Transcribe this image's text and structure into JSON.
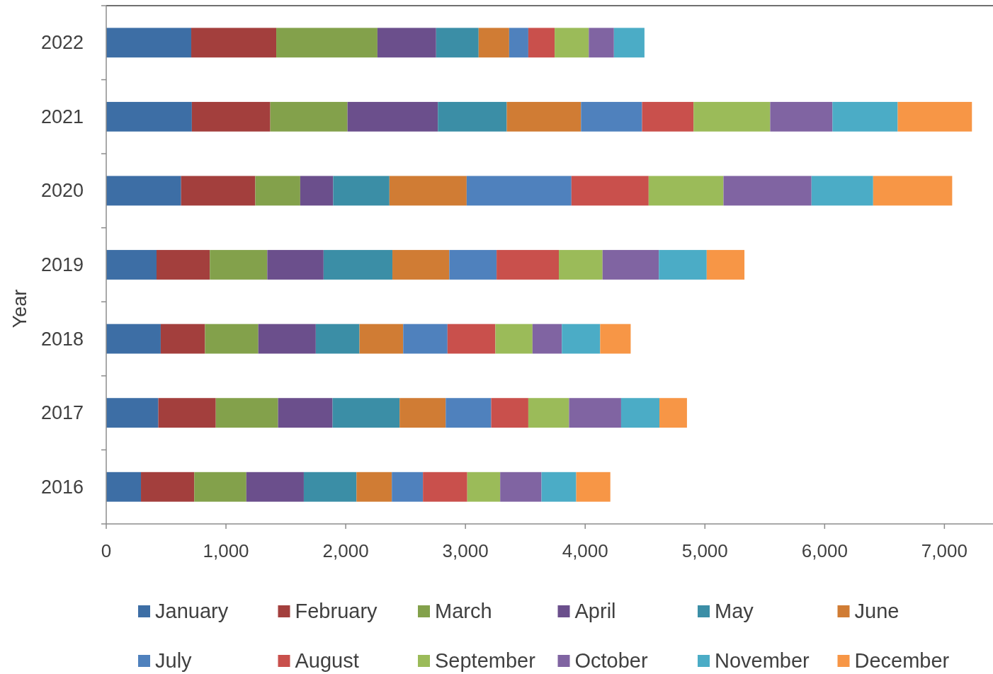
{
  "chart_data": {
    "type": "bar",
    "orientation": "horizontal",
    "stacked": true,
    "ylabel": "Year",
    "legend": "bottom",
    "categories": [
      "2022",
      "2021",
      "2020",
      "2019",
      "2018",
      "2017",
      "2016"
    ],
    "xlim": [
      0,
      7400
    ],
    "xticks": [
      0,
      {
        "value": 1000,
        "label": "1,000"
      },
      {
        "value": 2000,
        "label": "2,000"
      },
      {
        "value": 3000,
        "label": "3,000"
      },
      {
        "value": 4000,
        "label": "4,000"
      },
      {
        "value": 5000,
        "label": "5,000"
      },
      {
        "value": 6000,
        "label": "6,000"
      },
      {
        "value": 7000,
        "label": "7,000"
      }
    ],
    "series": [
      {
        "name": "January",
        "color": "#3d6ea5",
        "values": [
          710,
          715,
          625,
          420,
          455,
          435,
          290
        ]
      },
      {
        "name": "February",
        "color": "#a33f3d",
        "values": [
          710,
          655,
          620,
          445,
          370,
          480,
          445
        ]
      },
      {
        "name": "March",
        "color": "#83a14b",
        "values": [
          845,
          645,
          375,
          480,
          445,
          520,
          435
        ]
      },
      {
        "name": "April",
        "color": "#6b4f8c",
        "values": [
          490,
          755,
          275,
          470,
          480,
          455,
          480
        ]
      },
      {
        "name": "May",
        "color": "#3b8ea6",
        "values": [
          355,
          575,
          470,
          575,
          365,
          560,
          440
        ]
      },
      {
        "name": "June",
        "color": "#d07c34",
        "values": [
          255,
          620,
          645,
          475,
          365,
          385,
          295
        ]
      },
      {
        "name": "July",
        "color": "#4f81bd",
        "values": [
          160,
          510,
          875,
          395,
          370,
          380,
          260
        ]
      },
      {
        "name": "August",
        "color": "#c9504c",
        "values": [
          220,
          430,
          645,
          520,
          400,
          310,
          370
        ]
      },
      {
        "name": "September",
        "color": "#9bbb59",
        "values": [
          285,
          640,
          625,
          365,
          310,
          340,
          275
        ]
      },
      {
        "name": "October",
        "color": "#8064a2",
        "values": [
          210,
          520,
          735,
          470,
          245,
          435,
          345
        ]
      },
      {
        "name": "November",
        "color": "#4bacc6",
        "values": [
          255,
          545,
          515,
          400,
          320,
          320,
          290
        ]
      },
      {
        "name": "December",
        "color": "#f79646",
        "values": [
          null,
          620,
          660,
          315,
          255,
          230,
          285
        ]
      }
    ]
  }
}
